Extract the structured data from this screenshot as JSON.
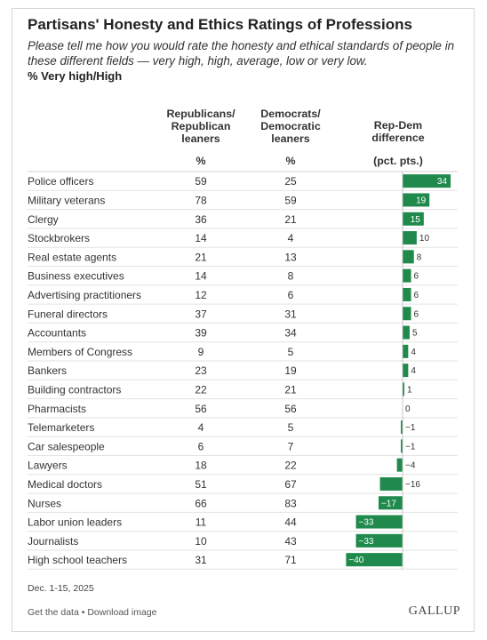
{
  "title": "Partisans' Honesty and Ethics Ratings of Professions",
  "subtitle": "Please tell me how you would rate the honesty and ethical standards of people in these different fields — very high, high, average, low or very low.",
  "metric_label": "% Very high/High",
  "columns": {
    "rep": {
      "line1": "Republicans/",
      "line2": "Republican",
      "line3": "leaners",
      "unit": "%"
    },
    "dem": {
      "line1": "Democrats/",
      "line2": "Democratic",
      "line3": "leaners",
      "unit": "%"
    },
    "diff": {
      "line1": "Rep-Dem",
      "line2": "difference",
      "unit": "(pct. pts.)"
    }
  },
  "chart_data": {
    "type": "bar",
    "categories": [
      "Police officers",
      "Military veterans",
      "Clergy",
      "Stockbrokers",
      "Real estate agents",
      "Business executives",
      "Advertising practitioners",
      "Funeral directors",
      "Accountants",
      "Members of Congress",
      "Bankers",
      "Building contractors",
      "Pharmacists",
      "Telemarketers",
      "Car salespeople",
      "Lawyers",
      "Medical doctors",
      "Nurses",
      "Labor union leaders",
      "Journalists",
      "High school teachers"
    ],
    "republicans": [
      59,
      78,
      36,
      14,
      21,
      14,
      12,
      37,
      39,
      9,
      23,
      22,
      56,
      4,
      6,
      18,
      51,
      66,
      11,
      10,
      31
    ],
    "democrats": [
      25,
      59,
      21,
      4,
      13,
      8,
      6,
      31,
      34,
      5,
      19,
      21,
      56,
      5,
      7,
      22,
      67,
      83,
      44,
      43,
      71
    ],
    "values": [
      34,
      19,
      15,
      10,
      8,
      6,
      6,
      6,
      5,
      4,
      4,
      1,
      0,
      -1,
      -1,
      -4,
      -16,
      -17,
      -33,
      -33,
      -40
    ],
    "value_labels": [
      "34",
      "19",
      "15",
      "10",
      "8",
      "6",
      "6",
      "6",
      "5",
      "4",
      "4",
      "1",
      "0",
      "−1",
      "−1",
      "−4",
      "−16",
      "−17",
      "−33",
      "−33",
      "−40"
    ],
    "bar_color": "#1f8a4c",
    "grid": false
  },
  "date": "Dec. 1-15, 2025",
  "footer": {
    "get_data": "Get the data",
    "separator": " • ",
    "download": "Download image"
  },
  "logo": "GALLUP"
}
